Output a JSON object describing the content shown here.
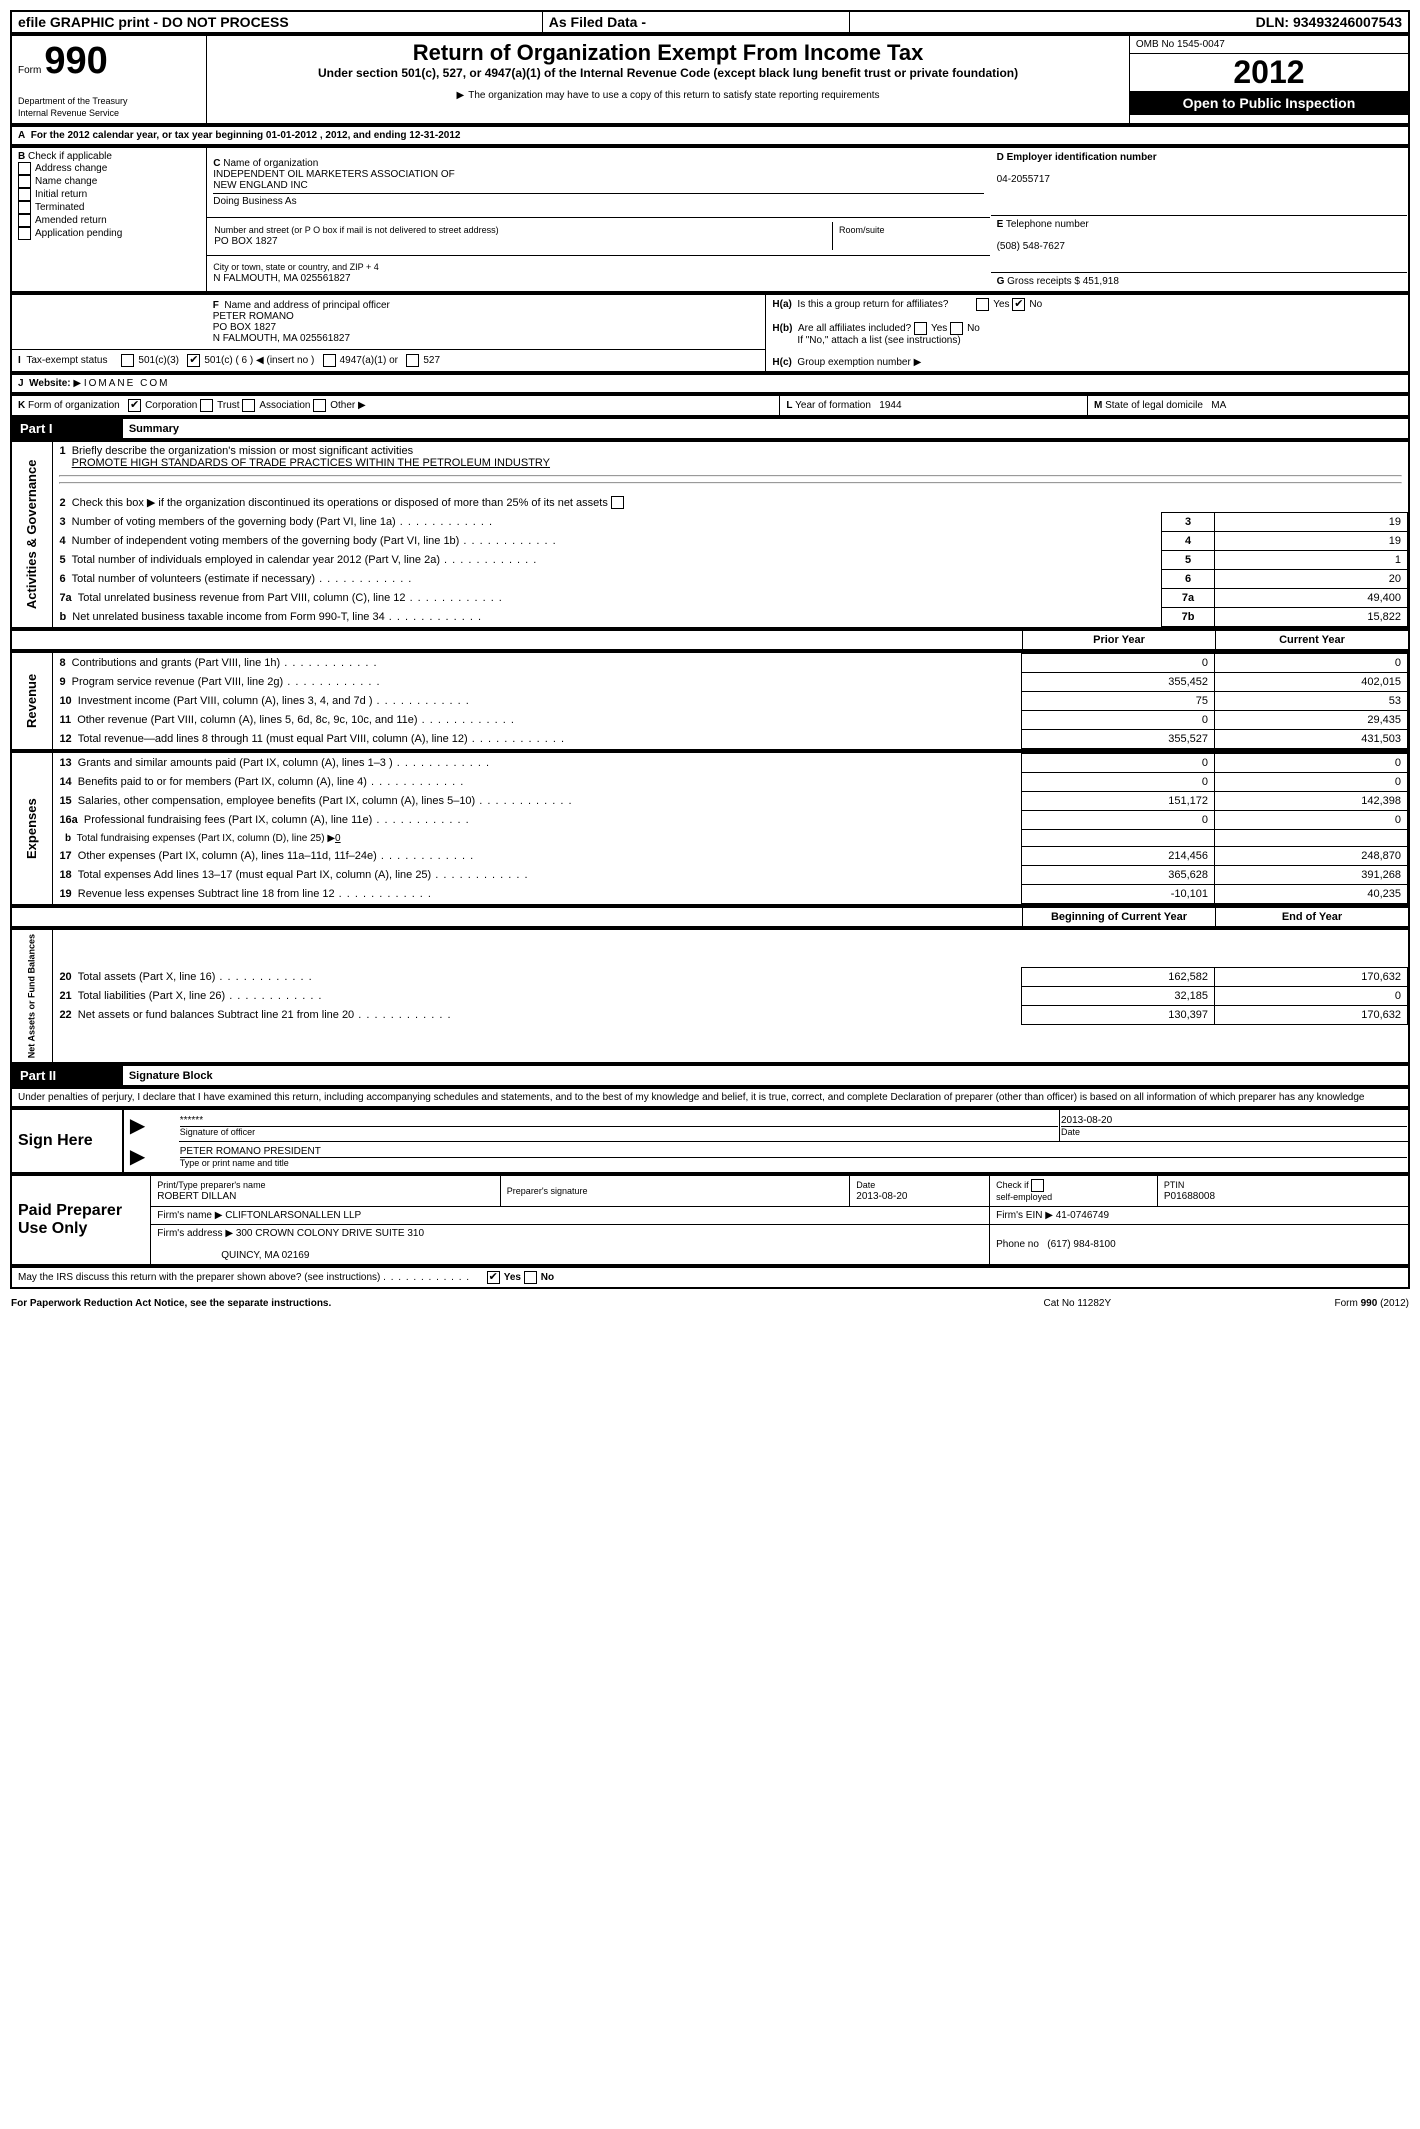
{
  "topbar": {
    "efile": "efile GRAPHIC print - DO NOT PROCESS",
    "asfiled": "As Filed Data -",
    "dln_label": "DLN:",
    "dln": "93493246007543"
  },
  "header": {
    "form_label": "Form",
    "form_number": "990",
    "dept": "Department of the Treasury",
    "irs": "Internal Revenue Service",
    "title": "Return of Organization Exempt From Income Tax",
    "subtitle1": "Under section 501(c), 527, or 4947(a)(1) of the Internal Revenue Code (except black lung benefit trust or private foundation)",
    "subtitle2": "The organization may have to use a copy of this return to satisfy state reporting requirements",
    "omb_label": "OMB No",
    "omb": "1545-0047",
    "year": "2012",
    "open": "Open to Public Inspection"
  },
  "A": {
    "text": "For the 2012 calendar year, or tax year beginning 01-01-2012    , 2012, and ending 12-31-2012"
  },
  "B": {
    "label": "Check if applicable",
    "items": [
      "Address change",
      "Name change",
      "Initial return",
      "Terminated",
      "Amended return",
      "Application pending"
    ]
  },
  "C": {
    "name_label": "Name of organization",
    "name1": "INDEPENDENT OIL MARKETERS ASSOCIATION OF",
    "name2": "NEW ENGLAND INC",
    "dba_label": "Doing Business As",
    "street_label": "Number and street (or P O  box if mail is not delivered to street address)",
    "room_label": "Room/suite",
    "street": "PO BOX 1827",
    "city_label": "City or town, state or country, and ZIP + 4",
    "city": "N FALMOUTH, MA  025561827"
  },
  "D": {
    "label": "Employer identification number",
    "value": "04-2055717"
  },
  "E": {
    "label": "Telephone number",
    "value": "(508) 548-7627"
  },
  "G": {
    "label": "Gross receipts $",
    "value": "451,918"
  },
  "F": {
    "label": "Name and address of principal officer",
    "name": "PETER ROMANO",
    "street": "PO BOX 1827",
    "city": "N FALMOUTH, MA  025561827"
  },
  "H": {
    "a": "Is this a group return for affiliates?",
    "a_yes": "Yes",
    "a_no": "No",
    "b": "Are all affiliates included?",
    "b_note": "If \"No,\" attach a list  (see instructions)",
    "c": "Group exemption number"
  },
  "I": {
    "label": "Tax-exempt status",
    "opts": [
      "501(c)(3)",
      "501(c) ( 6 )",
      "(insert no )",
      "4947(a)(1) or",
      "527"
    ]
  },
  "J": {
    "label": "Website:",
    "value": "IOMANE COM"
  },
  "K": {
    "label": "Form of organization",
    "opts": [
      "Corporation",
      "Trust",
      "Association",
      "Other"
    ]
  },
  "L": {
    "label": "Year of formation",
    "value": "1944"
  },
  "M": {
    "label": "State of legal domicile",
    "value": "MA"
  },
  "part1": {
    "title": "Part I",
    "subtitle": "Summary",
    "line1_label": "Briefly describe the organization's mission or most significant activities",
    "line1_value": "PROMOTE HIGH STANDARDS OF TRADE PRACTICES WITHIN THE PETROLEUM INDUSTRY",
    "line2": "Check this box ▶   if the organization discontinued its operations or disposed of more than 25% of its net assets",
    "sections": {
      "activities": "Activities & Governance",
      "revenue": "Revenue",
      "expenses": "Expenses",
      "netassets": "Net Assets or Fund Balances"
    },
    "rows_ag": [
      {
        "n": "3",
        "t": "Number of voting members of the governing body (Part VI, line 1a)",
        "box": "3",
        "v": "19"
      },
      {
        "n": "4",
        "t": "Number of independent voting members of the governing body (Part VI, line 1b)",
        "box": "4",
        "v": "19"
      },
      {
        "n": "5",
        "t": "Total number of individuals employed in calendar year 2012 (Part V, line 2a)",
        "box": "5",
        "v": "1"
      },
      {
        "n": "6",
        "t": "Total number of volunteers (estimate if necessary)",
        "box": "6",
        "v": "20"
      },
      {
        "n": "7a",
        "t": "Total unrelated business revenue from Part VIII, column (C), line 12",
        "box": "7a",
        "v": "49,400"
      },
      {
        "n": "b",
        "t": "Net unrelated business taxable income from Form 990-T, line 34",
        "box": "7b",
        "v": "15,822"
      }
    ],
    "col_headers": {
      "prior": "Prior Year",
      "current": "Current Year"
    },
    "rows_rev": [
      {
        "n": "8",
        "t": "Contributions and grants (Part VIII, line 1h)",
        "p": "0",
        "c": "0"
      },
      {
        "n": "9",
        "t": "Program service revenue (Part VIII, line 2g)",
        "p": "355,452",
        "c": "402,015"
      },
      {
        "n": "10",
        "t": "Investment income (Part VIII, column (A), lines 3, 4, and 7d )",
        "p": "75",
        "c": "53"
      },
      {
        "n": "11",
        "t": "Other revenue (Part VIII, column (A), lines 5, 6d, 8c, 9c, 10c, and 11e)",
        "p": "0",
        "c": "29,435"
      },
      {
        "n": "12",
        "t": "Total revenue—add lines 8 through 11 (must equal Part VIII, column (A), line 12)",
        "p": "355,527",
        "c": "431,503"
      }
    ],
    "rows_exp": [
      {
        "n": "13",
        "t": "Grants and similar amounts paid (Part IX, column (A), lines 1–3 )",
        "p": "0",
        "c": "0"
      },
      {
        "n": "14",
        "t": "Benefits paid to or for members (Part IX, column (A), line 4)",
        "p": "0",
        "c": "0"
      },
      {
        "n": "15",
        "t": "Salaries, other compensation, employee benefits (Part IX, column (A), lines 5–10)",
        "p": "151,172",
        "c": "142,398"
      },
      {
        "n": "16a",
        "t": "Professional fundraising fees (Part IX, column (A), line 11e)",
        "p": "0",
        "c": "0"
      },
      {
        "n": "b",
        "t": "Total fundraising expenses (Part IX, column (D), line 25) ▶",
        "p": "",
        "c": "",
        "inline": "0"
      },
      {
        "n": "17",
        "t": "Other expenses (Part IX, column (A), lines 11a–11d, 11f–24e)",
        "p": "214,456",
        "c": "248,870"
      },
      {
        "n": "18",
        "t": "Total expenses  Add lines 13–17 (must equal Part IX, column (A), line 25)",
        "p": "365,628",
        "c": "391,268"
      },
      {
        "n": "19",
        "t": "Revenue less expenses  Subtract line 18 from line 12",
        "p": "-10,101",
        "c": "40,235"
      }
    ],
    "na_headers": {
      "begin": "Beginning of Current Year",
      "end": "End of Year"
    },
    "rows_na": [
      {
        "n": "20",
        "t": "Total assets (Part X, line 16)",
        "p": "162,582",
        "c": "170,632"
      },
      {
        "n": "21",
        "t": "Total liabilities (Part X, line 26)",
        "p": "32,185",
        "c": "0"
      },
      {
        "n": "22",
        "t": "Net assets or fund balances  Subtract line 21 from line 20",
        "p": "130,397",
        "c": "170,632"
      }
    ]
  },
  "part2": {
    "title": "Part II",
    "subtitle": "Signature Block",
    "declaration": "Under penalties of perjury, I declare that I have examined this return, including accompanying schedules and statements, and to the best of my knowledge and belief, it is true, correct, and complete  Declaration of preparer (other than officer) is based on all information of which preparer has any knowledge",
    "sign_here": "Sign Here",
    "sig_stars": "******",
    "sig_label": "Signature of officer",
    "sig_date": "2013-08-20",
    "date_label": "Date",
    "officer_name": "PETER ROMANO PRESIDENT",
    "officer_label": "Type or print name and title",
    "paid": "Paid Preparer Use Only",
    "preparer_name_label": "Print/Type preparer's name",
    "preparer_name": "ROBERT DILLAN",
    "preparer_sig_label": "Preparer's signature",
    "prep_date": "2013-08-20",
    "self_emp": "self-employed",
    "check_if": "Check     if",
    "ptin_label": "PTIN",
    "ptin": "P01688008",
    "firm_name_label": "Firm's name   ▶",
    "firm_name": "CLIFTONLARSONALLEN LLP",
    "firm_ein_label": "Firm's EIN ▶",
    "firm_ein": "41-0746749",
    "firm_addr_label": "Firm's address ▶",
    "firm_addr1": "300 CROWN COLONY DRIVE SUITE 310",
    "firm_addr2": "QUINCY, MA  02169",
    "phone_label": "Phone no",
    "phone": "(617) 984-8100",
    "discuss": "May the IRS discuss this return with the preparer shown above? (see instructions)",
    "yes": "Yes",
    "no": "No"
  },
  "footer": {
    "notice": "For Paperwork Reduction Act Notice, see the separate instructions.",
    "cat": "Cat No  11282Y",
    "form": "Form 990 (2012)"
  }
}
